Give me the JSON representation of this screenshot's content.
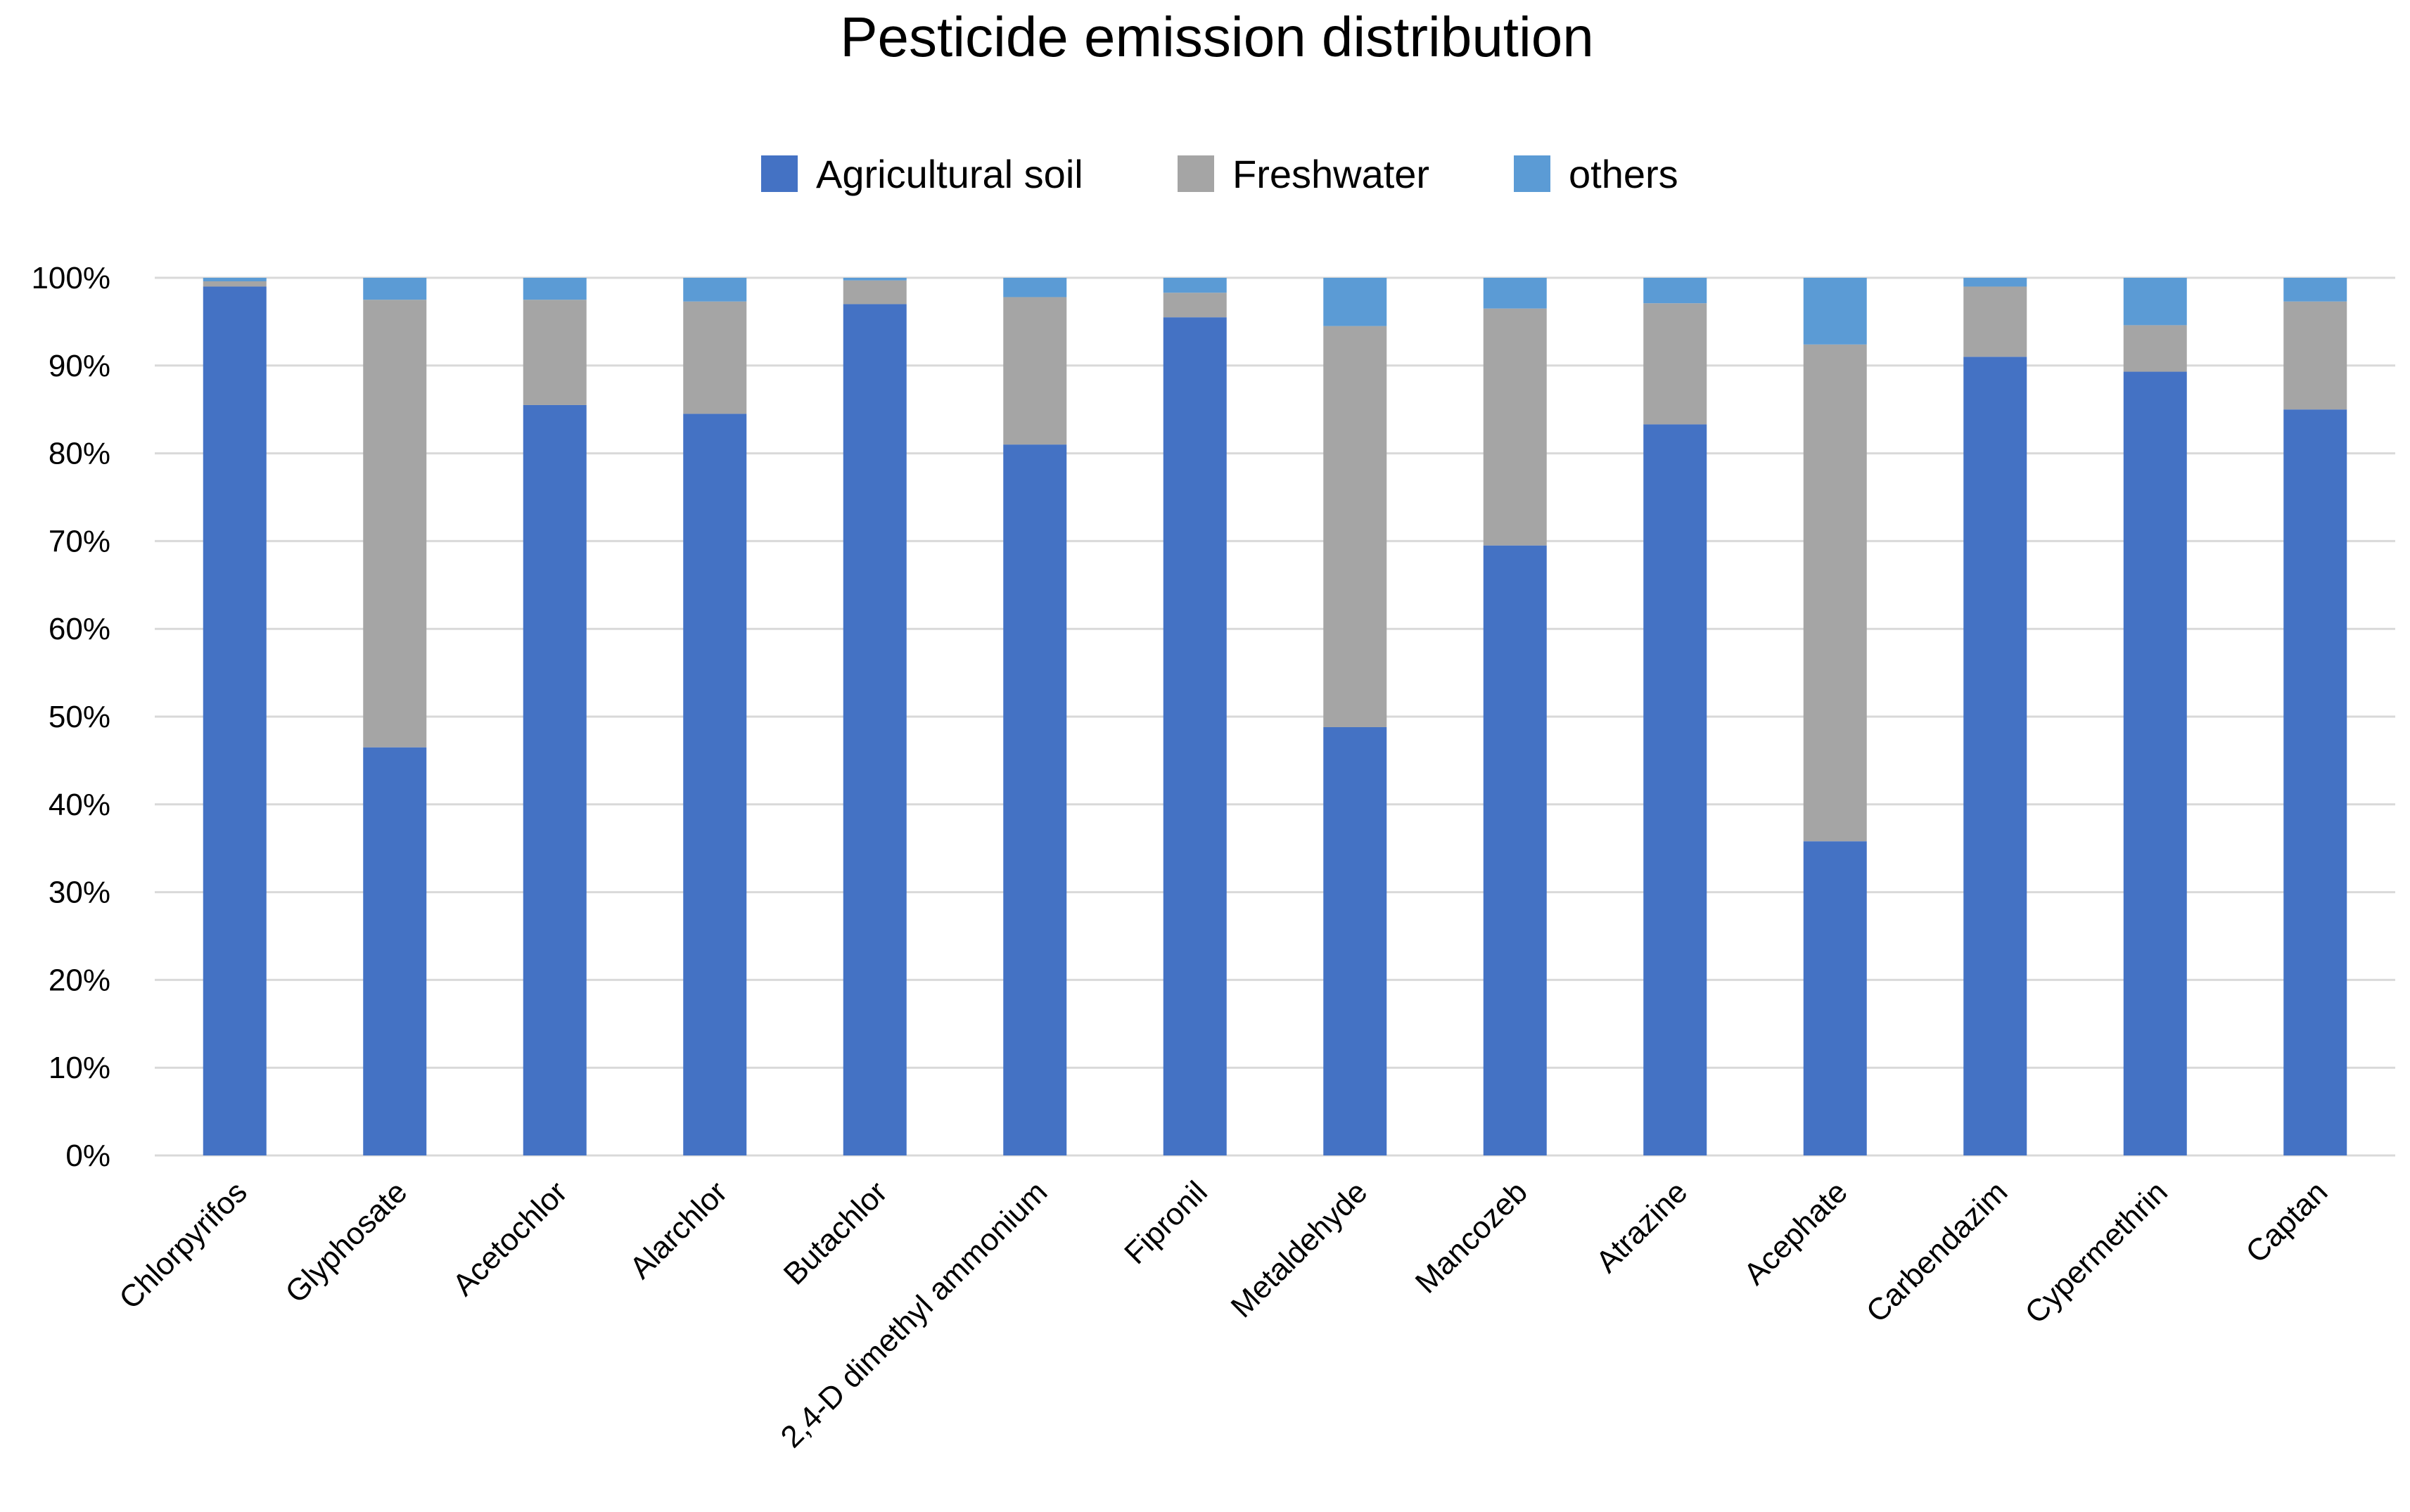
{
  "chart_data": {
    "type": "bar",
    "stacked": true,
    "percent": true,
    "title": "Pesticide emission distribution",
    "xlabel": "",
    "ylabel": "",
    "ylim": [
      0,
      100
    ],
    "yticks": [
      "0%",
      "10%",
      "20%",
      "30%",
      "40%",
      "50%",
      "60%",
      "70%",
      "80%",
      "90%",
      "100%"
    ],
    "legend_position": "top-center",
    "grid": true,
    "categories": [
      "Chlorpyrifos",
      "Glyphosate",
      "Acetochlor",
      "Alarchlor",
      "Butachlor",
      "2,4-D dimethyl ammonium",
      "Fipronil",
      "Metaldehyde",
      "Mancozeb",
      "Atrazine",
      "Acephate",
      "Carbendazim",
      "Cypermethrin",
      "Captan"
    ],
    "series": [
      {
        "name": "Agricultural soil",
        "color": "#4472c4",
        "values": [
          99,
          46.5,
          85.5,
          84.5,
          97,
          81,
          95.5,
          48.8,
          69.5,
          83.3,
          35.8,
          91,
          89.3,
          85
        ]
      },
      {
        "name": "Freshwater",
        "color": "#a5a5a5",
        "values": [
          0.6,
          51,
          12,
          12.8,
          2.7,
          16.8,
          2.8,
          45.7,
          27,
          13.8,
          56.6,
          8,
          5.3,
          12.3
        ]
      },
      {
        "name": "others",
        "color": "#5b9bd5",
        "values": [
          0.4,
          2.5,
          2.5,
          2.7,
          0.3,
          2.2,
          1.7,
          5.5,
          3.5,
          2.9,
          7.6,
          1,
          5.4,
          2.7
        ]
      }
    ]
  }
}
